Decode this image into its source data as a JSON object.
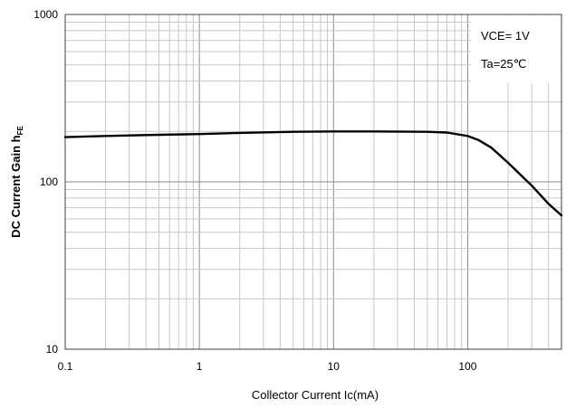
{
  "chart_data": {
    "type": "line",
    "xlabel": "Collector Current   Ic(mA)",
    "ylabel": {
      "main": "DC Current Gain   h",
      "sub": "FE"
    },
    "x_scale": "log",
    "y_scale": "log",
    "xlim": [
      0.1,
      500
    ],
    "ylim": [
      10,
      1000
    ],
    "x_ticks": [
      {
        "value": 0.1,
        "label": "0.1"
      },
      {
        "value": 1,
        "label": "1"
      },
      {
        "value": 10,
        "label": "10"
      },
      {
        "value": 100,
        "label": "100"
      }
    ],
    "y_ticks": [
      {
        "value": 10,
        "label": "10"
      },
      {
        "value": 100,
        "label": "100"
      },
      {
        "value": 1000,
        "label": "1000"
      }
    ],
    "grid": true,
    "annotations": [
      "VCE= 1V",
      "Ta=25℃"
    ],
    "series": [
      {
        "x": [
          0.1,
          0.2,
          0.5,
          1,
          2,
          5,
          10,
          20,
          50,
          70,
          100,
          120,
          150,
          200,
          300,
          400,
          500
        ],
        "values": [
          185,
          188,
          191,
          193,
          196,
          199,
          200,
          200,
          199,
          197,
          188,
          178,
          160,
          130,
          95,
          74,
          63
        ]
      }
    ]
  }
}
